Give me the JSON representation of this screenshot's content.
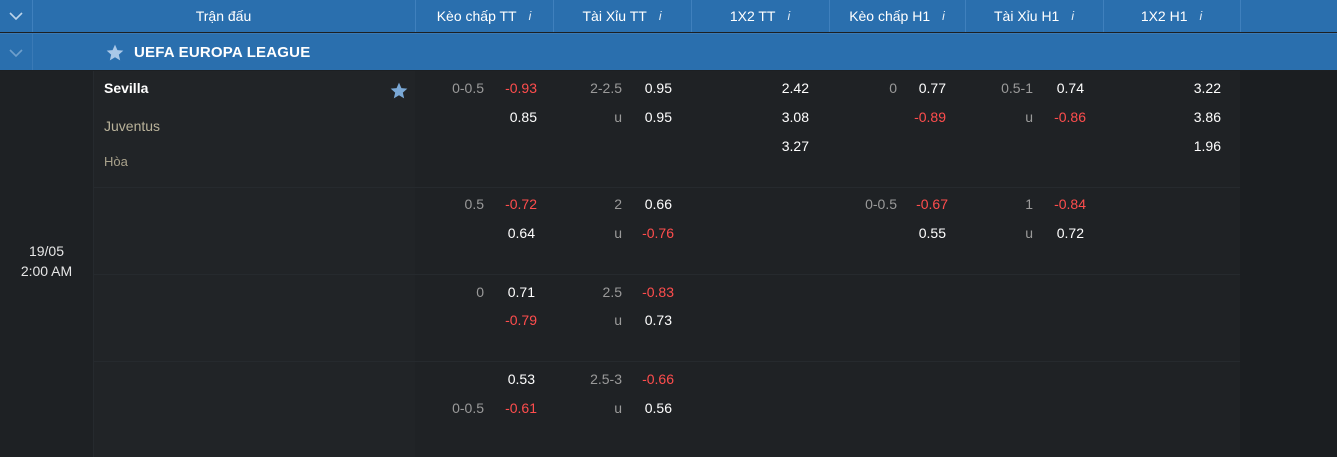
{
  "header": {
    "match": "Trận đấu",
    "kc_tt": "Kèo chấp TT",
    "tx_tt": "Tài Xỉu TT",
    "x12_tt": "1X2 TT",
    "kc_h1": "Kèo chấp H1",
    "tx_h1": "Tài Xỉu H1",
    "x12_h1": "1X2 H1",
    "info": "i"
  },
  "league": {
    "name": "UEFA EUROPA LEAGUE"
  },
  "match": {
    "date": "19/05",
    "time": "2:00 AM",
    "home": "Sevilla",
    "away": "Juventus",
    "draw": "Hòa"
  },
  "odds": {
    "r1": {
      "kc_line": "0-0.5",
      "kc_a": "-0.93",
      "kc_b": "0.85",
      "tx_line": "2-2.5",
      "tx_u": "u",
      "tx_a": "0.95",
      "tx_b": "0.95",
      "x12_1": "2.42",
      "x12_x": "3.08",
      "x12_2": "3.27",
      "kch_line": "0",
      "kch_a": "0.77",
      "kch_b": "-0.89",
      "txh_line": "0.5-1",
      "txh_u": "u",
      "txh_a": "0.74",
      "txh_b": "-0.86",
      "x12h_1": "3.22",
      "x12h_x": "3.86",
      "x12h_2": "1.96"
    },
    "r2": {
      "kc_line": "0.5",
      "kc_a": "-0.72",
      "kc_b": "0.64",
      "tx_line": "2",
      "tx_u": "u",
      "tx_a": "0.66",
      "tx_b": "-0.76",
      "kch_line": "0-0.5",
      "kch_a": "-0.67",
      "kch_b": "0.55",
      "txh_line": "1",
      "txh_u": "u",
      "txh_a": "-0.84",
      "txh_b": "0.72"
    },
    "r3": {
      "kc_line": "0",
      "kc_a": "0.71",
      "kc_b": "-0.79",
      "tx_line": "2.5",
      "tx_u": "u",
      "tx_a": "-0.83",
      "tx_b": "0.73"
    },
    "r4": {
      "kc_line": "0-0.5",
      "kc_a": "0.53",
      "kc_b": "-0.61",
      "tx_line": "2.5-3",
      "tx_u": "u",
      "tx_a": "-0.66",
      "tx_b": "0.56"
    }
  },
  "colors": {
    "header_bg": "#2a6fae",
    "negative": "#ff4d4d",
    "team_away": "#b9b29a"
  },
  "icons": {
    "collapse": "chevron-down-icon",
    "favorite": "star-icon"
  }
}
